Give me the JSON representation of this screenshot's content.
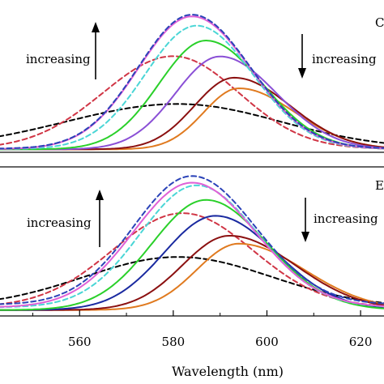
{
  "chart_data": {
    "type": "line",
    "xlabel": "Wavelength (nm)",
    "xlim": [
      543,
      625
    ],
    "xticks": [
      560,
      580,
      600,
      620
    ],
    "panels": [
      {
        "label": "C",
        "ylim": [
          0,
          1.05
        ],
        "annotations": [
          {
            "text": "increasing",
            "x": 556,
            "y": 0.67,
            "arrow": "up"
          },
          {
            "text": "increasing",
            "x": 610,
            "y": 0.67,
            "arrow": "down"
          }
        ],
        "series": [
          {
            "color": "#000000",
            "dash": "dashed",
            "peak_x": 581,
            "peak_y": 0.34,
            "width_left": 24,
            "width_right": 22,
            "baseline": 0.012
          },
          {
            "color": "#d03545",
            "dash": "dashed",
            "peak_x": 580,
            "peak_y": 0.7,
            "width_left": 15,
            "width_right": 14,
            "baseline": 0.012
          },
          {
            "color": "#e07a1f",
            "dash": "solid",
            "peak_x": 594,
            "peak_y": 0.46,
            "width_left": 7.5,
            "width_right": 12,
            "baseline": 0.01
          },
          {
            "color": "#8b1010",
            "dash": "solid",
            "peak_x": 593,
            "peak_y": 0.54,
            "width_left": 8.5,
            "width_right": 12,
            "baseline": 0.01
          },
          {
            "color": "#8a4fd6",
            "dash": "solid",
            "peak_x": 590,
            "peak_y": 0.7,
            "width_left": 9.5,
            "width_right": 12,
            "baseline": 0.01
          },
          {
            "color": "#2ad02a",
            "dash": "solid",
            "peak_x": 587,
            "peak_y": 0.82,
            "width_left": 10,
            "width_right": 12,
            "baseline": 0.01
          },
          {
            "color": "#4ad6d6",
            "dash": "dashed",
            "peak_x": 585,
            "peak_y": 0.93,
            "width_left": 11,
            "width_right": 12,
            "baseline": 0.012
          },
          {
            "color": "#e060d6",
            "dash": "solid",
            "peak_x": 584,
            "peak_y": 1.0,
            "width_left": 11.5,
            "width_right": 12.5,
            "baseline": 0.012
          },
          {
            "color": "#2b43b8",
            "dash": "dashed",
            "peak_x": 584,
            "peak_y": 1.01,
            "width_left": 11.5,
            "width_right": 12.5,
            "baseline": 0.015
          }
        ]
      },
      {
        "label": "E",
        "ylim": [
          0,
          1.05
        ],
        "annotations": [
          {
            "text": "increasing",
            "x": 556,
            "y": 0.67,
            "arrow": "up"
          },
          {
            "text": "increasing",
            "x": 610,
            "y": 0.67,
            "arrow": "down"
          }
        ],
        "series": [
          {
            "color": "#000000",
            "dash": "dashed",
            "peak_x": 581,
            "peak_y": 0.38,
            "width_left": 20,
            "width_right": 20,
            "baseline": 0.04
          },
          {
            "color": "#d03545",
            "dash": "dashed",
            "peak_x": 582,
            "peak_y": 0.71,
            "width_left": 15,
            "width_right": 15,
            "baseline": 0.04
          },
          {
            "color": "#e07a1f",
            "dash": "solid",
            "peak_x": 594,
            "peak_y": 0.5,
            "width_left": 9,
            "width_right": 14,
            "baseline": 0.02
          },
          {
            "color": "#8b1010",
            "dash": "solid",
            "peak_x": 592,
            "peak_y": 0.56,
            "width_left": 10,
            "width_right": 14,
            "baseline": 0.02
          },
          {
            "color": "#1a2aa0",
            "dash": "solid",
            "peak_x": 589,
            "peak_y": 0.71,
            "width_left": 11,
            "width_right": 13,
            "baseline": 0.02
          },
          {
            "color": "#2ad02a",
            "dash": "solid",
            "peak_x": 587,
            "peak_y": 0.83,
            "width_left": 11.5,
            "width_right": 13,
            "baseline": 0.02
          },
          {
            "color": "#4ad6d6",
            "dash": "dashed",
            "peak_x": 585,
            "peak_y": 0.92,
            "width_left": 12,
            "width_right": 13,
            "baseline": 0.04
          },
          {
            "color": "#e060d6",
            "dash": "solid",
            "peak_x": 584,
            "peak_y": 0.94,
            "width_left": 12.5,
            "width_right": 13.5,
            "baseline": 0.04
          },
          {
            "color": "#2b43b8",
            "dash": "dashed",
            "peak_x": 584,
            "peak_y": 0.97,
            "width_left": 12.5,
            "width_right": 13.5,
            "baseline": 0.06
          }
        ]
      }
    ]
  }
}
